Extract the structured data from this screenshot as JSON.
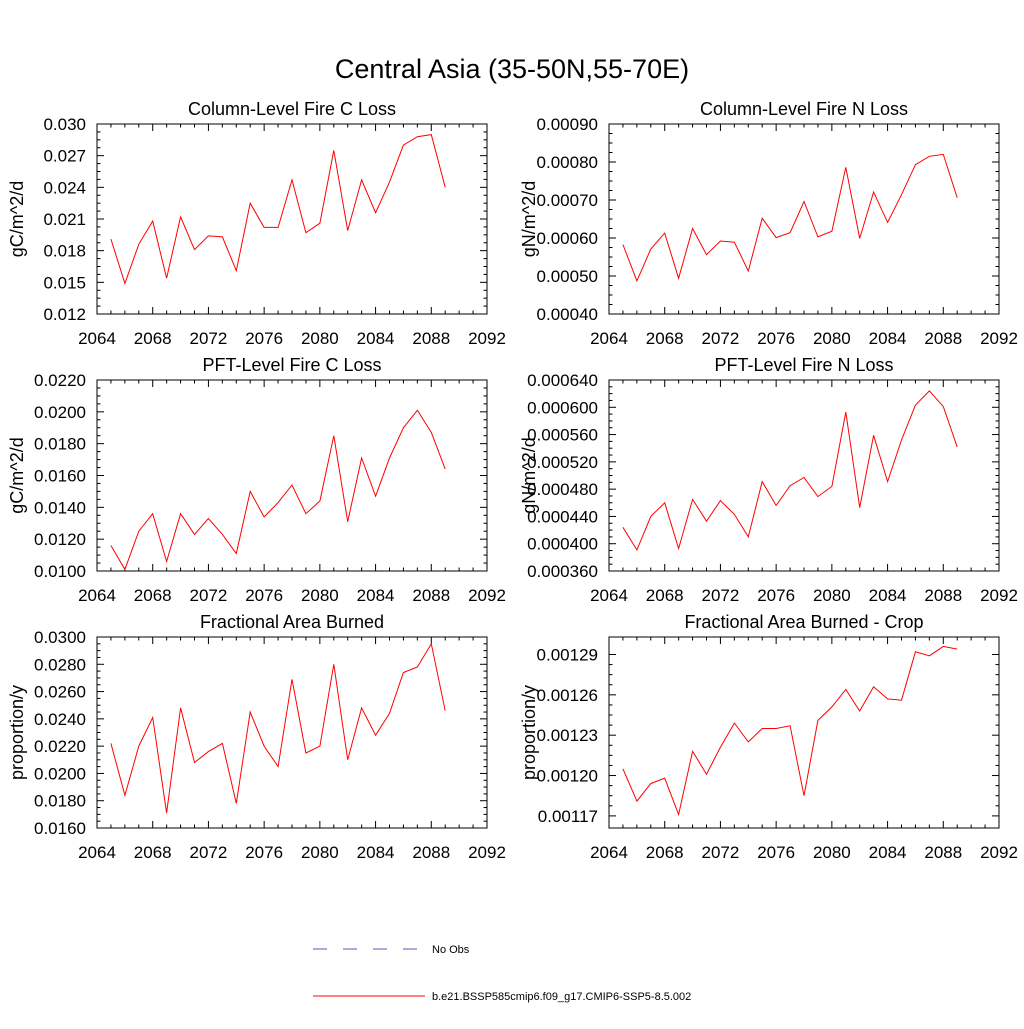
{
  "figure": {
    "title": "Central Asia (35-50N,55-70E)",
    "legend": [
      {
        "label": "No Obs",
        "color": "#5a5ab4",
        "dash": true
      },
      {
        "label": "b.e21.BSSP585cmip6.f09_g17.CMIP6-SSP5-8.5.002",
        "color": "#ff0000",
        "dash": false
      }
    ]
  },
  "chart_data": [
    {
      "type": "line",
      "title": "Column-Level Fire C Loss",
      "ylabel": "gC/m^2/d",
      "xlim": [
        2064,
        2092
      ],
      "xticks": [
        "2064",
        "2068",
        "2072",
        "2076",
        "2080",
        "2084",
        "2088",
        "2092"
      ],
      "ylim": [
        0.012,
        0.03
      ],
      "yticks": [
        "0.012",
        "0.015",
        "0.018",
        "0.021",
        "0.024",
        "0.027",
        "0.030"
      ],
      "x": [
        2065,
        2066,
        2067,
        2068,
        2069,
        2070,
        2071,
        2072,
        2073,
        2074,
        2075,
        2076,
        2077,
        2078,
        2079,
        2080,
        2081,
        2082,
        2083,
        2084,
        2085,
        2086,
        2087,
        2088,
        2089
      ],
      "series": [
        {
          "color": "#ff0000",
          "values": [
            0.0191,
            0.0149,
            0.0186,
            0.0208,
            0.0154,
            0.0212,
            0.0181,
            0.0194,
            0.0193,
            0.0161,
            0.0225,
            0.0202,
            0.0202,
            0.0247,
            0.0197,
            0.0206,
            0.0275,
            0.0199,
            0.0247,
            0.0216,
            0.0245,
            0.028,
            0.0288,
            0.029,
            0.024
          ]
        }
      ]
    },
    {
      "type": "line",
      "title": "Column-Level Fire N Loss",
      "ylabel": "gN/m^2/d",
      "xlim": [
        2064,
        2092
      ],
      "xticks": [
        "2064",
        "2068",
        "2072",
        "2076",
        "2080",
        "2084",
        "2088",
        "2092"
      ],
      "ylim": [
        0.0004,
        0.0009
      ],
      "yticks": [
        "0.00040",
        "0.00050",
        "0.00060",
        "0.00070",
        "0.00080",
        "0.00090"
      ],
      "x": [
        2065,
        2066,
        2067,
        2068,
        2069,
        2070,
        2071,
        2072,
        2073,
        2074,
        2075,
        2076,
        2077,
        2078,
        2079,
        2080,
        2081,
        2082,
        2083,
        2084,
        2085,
        2086,
        2087,
        2088,
        2089
      ],
      "series": [
        {
          "color": "#ff0000",
          "values": [
            0.000583,
            0.000487,
            0.000571,
            0.000613,
            0.000494,
            0.000625,
            0.000556,
            0.000592,
            0.000589,
            0.000513,
            0.000652,
            0.000601,
            0.000614,
            0.000696,
            0.000603,
            0.000618,
            0.000786,
            0.000599,
            0.000721,
            0.000641,
            0.000714,
            0.000793,
            0.000815,
            0.00082,
            0.000706
          ]
        }
      ]
    },
    {
      "type": "line",
      "title": "PFT-Level Fire C Loss",
      "ylabel": "gC/m^2/d",
      "xlim": [
        2064,
        2092
      ],
      "xticks": [
        "2064",
        "2068",
        "2072",
        "2076",
        "2080",
        "2084",
        "2088",
        "2092"
      ],
      "ylim": [
        0.01,
        0.022
      ],
      "yticks": [
        "0.0100",
        "0.0120",
        "0.0140",
        "0.0160",
        "0.0180",
        "0.0200",
        "0.0220"
      ],
      "x": [
        2065,
        2066,
        2067,
        2068,
        2069,
        2070,
        2071,
        2072,
        2073,
        2074,
        2075,
        2076,
        2077,
        2078,
        2079,
        2080,
        2081,
        2082,
        2083,
        2084,
        2085,
        2086,
        2087,
        2088,
        2089
      ],
      "series": [
        {
          "color": "#ff0000",
          "values": [
            0.0116,
            0.0101,
            0.0125,
            0.0136,
            0.0106,
            0.0136,
            0.0123,
            0.0133,
            0.0123,
            0.0111,
            0.015,
            0.0134,
            0.0143,
            0.0154,
            0.0136,
            0.0144,
            0.0185,
            0.0131,
            0.0171,
            0.0147,
            0.0171,
            0.019,
            0.0201,
            0.0187,
            0.0164
          ]
        }
      ]
    },
    {
      "type": "line",
      "title": "PFT-Level Fire N Loss",
      "ylabel": "gN/m^2/d",
      "xlim": [
        2064,
        2092
      ],
      "xticks": [
        "2064",
        "2068",
        "2072",
        "2076",
        "2080",
        "2084",
        "2088",
        "2092"
      ],
      "ylim": [
        0.00036,
        0.00064
      ],
      "yticks": [
        "0.000360",
        "0.000400",
        "0.000440",
        "0.000480",
        "0.000520",
        "0.000560",
        "0.000600",
        "0.000640"
      ],
      "x": [
        2065,
        2066,
        2067,
        2068,
        2069,
        2070,
        2071,
        2072,
        2073,
        2074,
        2075,
        2076,
        2077,
        2078,
        2079,
        2080,
        2081,
        2082,
        2083,
        2084,
        2085,
        2086,
        2087,
        2088,
        2089
      ],
      "series": [
        {
          "color": "#ff0000",
          "values": [
            0.000424,
            0.000391,
            0.00044,
            0.00046,
            0.000393,
            0.000465,
            0.000433,
            0.000463,
            0.000443,
            0.00041,
            0.000491,
            0.000456,
            0.000485,
            0.000497,
            0.000469,
            0.000484,
            0.000593,
            0.000453,
            0.000559,
            0.000491,
            0.000552,
            0.000603,
            0.000624,
            0.000601,
            0.000542
          ]
        }
      ]
    },
    {
      "type": "line",
      "title": "Fractional Area Burned",
      "ylabel": "proportion/y",
      "xlim": [
        2064,
        2092
      ],
      "xticks": [
        "2064",
        "2068",
        "2072",
        "2076",
        "2080",
        "2084",
        "2088",
        "2092"
      ],
      "ylim": [
        0.016,
        0.03
      ],
      "yticks": [
        "0.0160",
        "0.0180",
        "0.0200",
        "0.0220",
        "0.0240",
        "0.0260",
        "0.0280",
        "0.0300"
      ],
      "x": [
        2065,
        2066,
        2067,
        2068,
        2069,
        2070,
        2071,
        2072,
        2073,
        2074,
        2075,
        2076,
        2077,
        2078,
        2079,
        2080,
        2081,
        2082,
        2083,
        2084,
        2085,
        2086,
        2087,
        2088,
        2089
      ],
      "series": [
        {
          "color": "#ff0000",
          "values": [
            0.0222,
            0.0184,
            0.022,
            0.0241,
            0.0171,
            0.0248,
            0.0208,
            0.0216,
            0.0222,
            0.0178,
            0.0245,
            0.022,
            0.0205,
            0.0269,
            0.0215,
            0.022,
            0.028,
            0.021,
            0.0248,
            0.0228,
            0.0244,
            0.0274,
            0.0278,
            0.0295,
            0.0246
          ]
        }
      ]
    },
    {
      "type": "line",
      "title": "Fractional Area Burned - Crop",
      "ylabel": "proportion/y",
      "xlim": [
        2064,
        2092
      ],
      "xticks": [
        "2064",
        "2068",
        "2072",
        "2076",
        "2080",
        "2084",
        "2088",
        "2092"
      ],
      "ylim": [
        0.001161,
        0.001303
      ],
      "yticks": [
        "0.00117",
        "0.00120",
        "0.00123",
        "0.00126",
        "0.00129"
      ],
      "x": [
        2065,
        2066,
        2067,
        2068,
        2069,
        2070,
        2071,
        2072,
        2073,
        2074,
        2075,
        2076,
        2077,
        2078,
        2079,
        2080,
        2081,
        2082,
        2083,
        2084,
        2085,
        2086,
        2087,
        2088,
        2089
      ],
      "series": [
        {
          "color": "#ff0000",
          "values": [
            0.001205,
            0.001181,
            0.001194,
            0.001198,
            0.001171,
            0.001218,
            0.001201,
            0.001221,
            0.001239,
            0.001225,
            0.001235,
            0.001235,
            0.001237,
            0.001185,
            0.001241,
            0.001251,
            0.001264,
            0.001248,
            0.001266,
            0.001257,
            0.001256,
            0.001292,
            0.001289,
            0.001296,
            0.001294
          ]
        }
      ]
    }
  ]
}
